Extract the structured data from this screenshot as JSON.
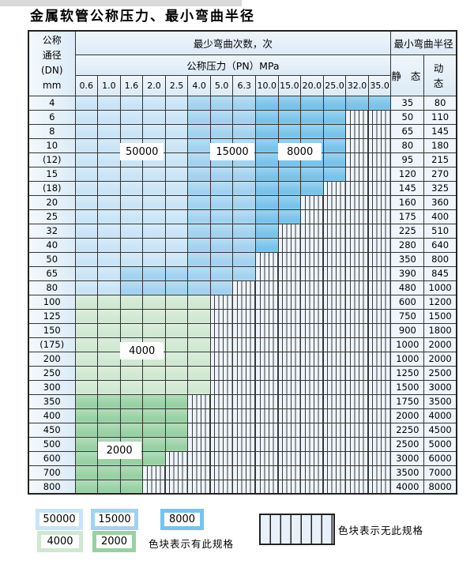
{
  "title": "金属软管公称压力、最小弯曲半径",
  "colors": {
    "b1": "#c9e4f6",
    "b2": "#a2d2ef",
    "b3": "#79c3ea",
    "g1": "#d0e8d1",
    "g2": "#98d1a3"
  },
  "table": {
    "corner_lines": [
      "公称",
      "通径",
      "(DN)",
      "mm"
    ],
    "cycles_header": "最少弯曲次数，次",
    "pressure_header": "公称压力（PN）MPa",
    "ticks": [
      "0.6",
      "1.0",
      "1.6",
      "2.0",
      "2.5",
      "4.0",
      "5.0",
      "6.3",
      "10.0",
      "15.0",
      "20.0",
      "25.0",
      "32.0",
      "35.0"
    ],
    "radius_header": "最小弯曲半径",
    "static_label": "静 态",
    "dynamic_label": "动 态",
    "rows": [
      {
        "dn": "4",
        "segs": [
          [
            "b1",
            5
          ],
          [
            "b2",
            8
          ],
          [
            "b3",
            14
          ]
        ],
        "static": "35",
        "dynamic": "80"
      },
      {
        "dn": "6",
        "segs": [
          [
            "b1",
            5
          ],
          [
            "b2",
            8
          ],
          [
            "b3",
            12
          ]
        ],
        "static": "50",
        "dynamic": "110"
      },
      {
        "dn": "8",
        "segs": [
          [
            "b1",
            5
          ],
          [
            "b2",
            8
          ],
          [
            "b3",
            12
          ]
        ],
        "static": "65",
        "dynamic": "145"
      },
      {
        "dn": "10",
        "segs": [
          [
            "b1",
            5
          ],
          [
            "b2",
            8
          ],
          [
            "b3",
            12
          ]
        ],
        "static": "80",
        "dynamic": "180"
      },
      {
        "dn": "(12)",
        "segs": [
          [
            "b1",
            5
          ],
          [
            "b2",
            8
          ],
          [
            "b3",
            12
          ]
        ],
        "static": "95",
        "dynamic": "215"
      },
      {
        "dn": "15",
        "segs": [
          [
            "b1",
            5
          ],
          [
            "b2",
            8
          ],
          [
            "b3",
            12
          ]
        ],
        "static": "120",
        "dynamic": "270"
      },
      {
        "dn": "(18)",
        "segs": [
          [
            "b1",
            5
          ],
          [
            "b2",
            8
          ],
          [
            "b3",
            11
          ]
        ],
        "static": "145",
        "dynamic": "325"
      },
      {
        "dn": "20",
        "segs": [
          [
            "b1",
            5
          ],
          [
            "b2",
            8
          ],
          [
            "b3",
            10
          ]
        ],
        "static": "160",
        "dynamic": "360"
      },
      {
        "dn": "25",
        "segs": [
          [
            "b1",
            5
          ],
          [
            "b2",
            8
          ],
          [
            "b3",
            10
          ]
        ],
        "static": "175",
        "dynamic": "400"
      },
      {
        "dn": "32",
        "segs": [
          [
            "b1",
            5
          ],
          [
            "b2",
            8
          ],
          [
            "b3",
            9
          ]
        ],
        "static": "225",
        "dynamic": "510"
      },
      {
        "dn": "40",
        "segs": [
          [
            "b1",
            5
          ],
          [
            "b2",
            8
          ],
          [
            "b3",
            9
          ]
        ],
        "static": "280",
        "dynamic": "640"
      },
      {
        "dn": "50",
        "segs": [
          [
            "b1",
            5
          ],
          [
            "b2",
            8
          ]
        ],
        "static": "350",
        "dynamic": "800"
      },
      {
        "dn": "65",
        "segs": [
          [
            "b1",
            2
          ],
          [
            "b2",
            8
          ]
        ],
        "static": "390",
        "dynamic": "845"
      },
      {
        "dn": "80",
        "segs": [
          [
            "b1",
            2
          ],
          [
            "b2",
            7
          ]
        ],
        "static": "480",
        "dynamic": "1000"
      },
      {
        "dn": "100",
        "segs": [
          [
            "g1",
            6
          ]
        ],
        "static": "600",
        "dynamic": "1200"
      },
      {
        "dn": "125",
        "segs": [
          [
            "g1",
            6
          ]
        ],
        "static": "750",
        "dynamic": "1500"
      },
      {
        "dn": "150",
        "segs": [
          [
            "g1",
            6
          ]
        ],
        "static": "900",
        "dynamic": "1800"
      },
      {
        "dn": "(175)",
        "segs": [
          [
            "g1",
            6
          ]
        ],
        "static": "1000",
        "dynamic": "2000"
      },
      {
        "dn": "200",
        "segs": [
          [
            "g1",
            6
          ]
        ],
        "static": "1000",
        "dynamic": "2000"
      },
      {
        "dn": "250",
        "segs": [
          [
            "g1",
            6
          ]
        ],
        "static": "1250",
        "dynamic": "2500"
      },
      {
        "dn": "300",
        "segs": [
          [
            "g1",
            6
          ]
        ],
        "static": "1500",
        "dynamic": "3000"
      },
      {
        "dn": "350",
        "segs": [
          [
            "g2",
            5
          ]
        ],
        "static": "1750",
        "dynamic": "3500"
      },
      {
        "dn": "400",
        "segs": [
          [
            "g2",
            5
          ]
        ],
        "static": "2000",
        "dynamic": "4000"
      },
      {
        "dn": "450",
        "segs": [
          [
            "g2",
            5
          ]
        ],
        "static": "2250",
        "dynamic": "4500"
      },
      {
        "dn": "500",
        "segs": [
          [
            "g2",
            5
          ]
        ],
        "static": "2500",
        "dynamic": "5000"
      },
      {
        "dn": "600",
        "segs": [
          [
            "g2",
            4
          ]
        ],
        "static": "3000",
        "dynamic": "6000"
      },
      {
        "dn": "700",
        "segs": [
          [
            "g2",
            3
          ]
        ],
        "static": "3500",
        "dynamic": "7000"
      },
      {
        "dn": "800",
        "segs": [
          [
            "g2",
            3
          ]
        ],
        "static": "4000",
        "dynamic": "8000"
      }
    ]
  },
  "overlays": [
    {
      "text": "50000",
      "col_start": 2,
      "col_end": 4,
      "row_start": 3,
      "row_end": 5
    },
    {
      "text": "15000",
      "col_start": 6,
      "col_end": 8,
      "row_start": 3,
      "row_end": 5
    },
    {
      "text": "8000",
      "col_start": 9,
      "col_end": 11,
      "row_start": 3,
      "row_end": 5
    },
    {
      "text": "4000",
      "col_start": 2,
      "col_end": 4,
      "row_start": 17,
      "row_end": 19
    },
    {
      "text": "2000",
      "col_start": 1,
      "col_end": 3,
      "row_start": 24,
      "row_end": 26
    }
  ],
  "legend": {
    "swatches": [
      {
        "value": "50000",
        "color": "b1"
      },
      {
        "value": "15000",
        "color": "b2"
      },
      {
        "value": "8000",
        "color": "b3"
      },
      {
        "value": "4000",
        "color": "g1"
      },
      {
        "value": "2000",
        "color": "g2"
      }
    ],
    "has_spec_text": "色块表示有此规格",
    "no_spec_text": "色块表示无此规格"
  }
}
